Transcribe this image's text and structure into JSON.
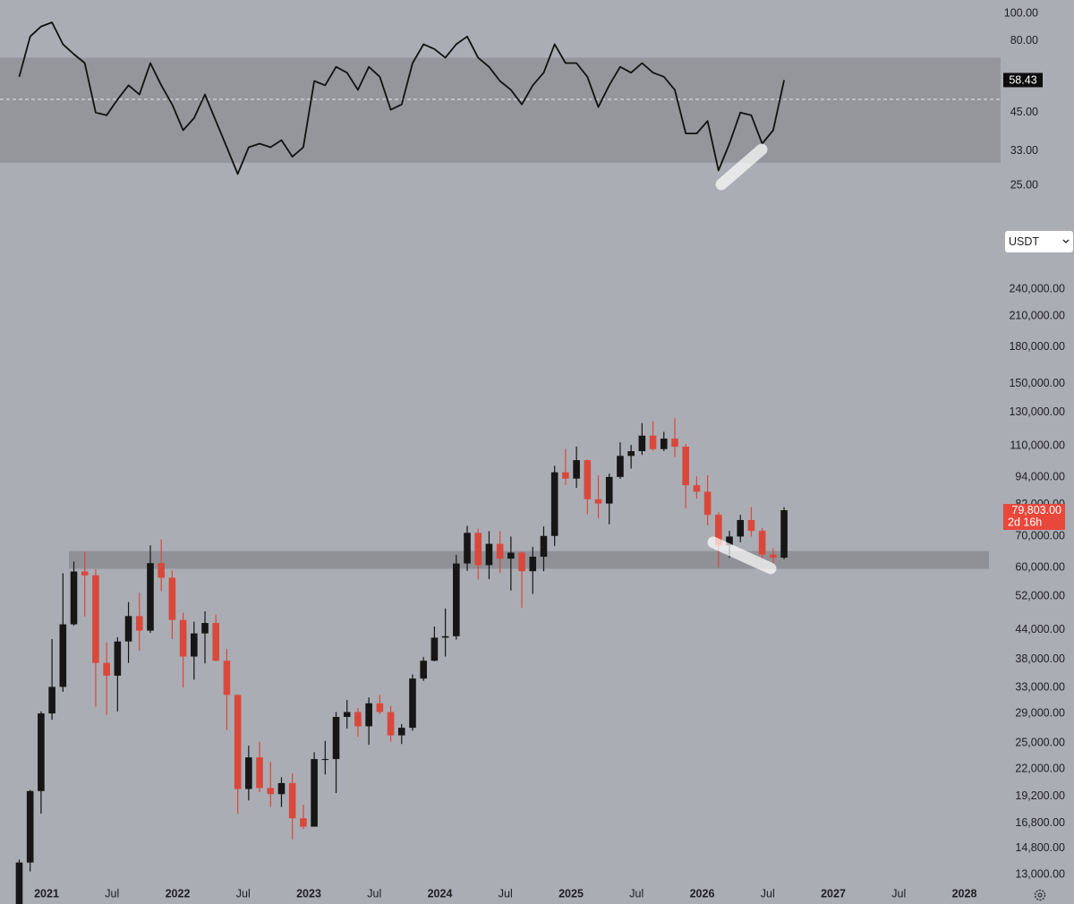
{
  "chart_data": [
    {
      "type": "line",
      "x": [
        "2020-10",
        "2020-11",
        "2020-12",
        "2021-01",
        "2021-02",
        "2021-03",
        "2021-04",
        "2021-05",
        "2021-06",
        "2021-07",
        "2021-08",
        "2021-09",
        "2021-10",
        "2021-11",
        "2021-12",
        "2022-01",
        "2022-02",
        "2022-03",
        "2022-04",
        "2022-05",
        "2022-06",
        "2022-07",
        "2022-08",
        "2022-09",
        "2022-10",
        "2022-11",
        "2022-12",
        "2023-01",
        "2023-02",
        "2023-03",
        "2023-04",
        "2023-05",
        "2023-06",
        "2023-07",
        "2023-08",
        "2023-09",
        "2023-10",
        "2023-11",
        "2023-12",
        "2024-01",
        "2024-02",
        "2024-03",
        "2024-04",
        "2024-05",
        "2024-06",
        "2024-07",
        "2024-08",
        "2024-09",
        "2024-10",
        "2024-11",
        "2024-12",
        "2025-01",
        "2025-02",
        "2025-03",
        "2025-04",
        "2025-05",
        "2025-06",
        "2025-07",
        "2025-08",
        "2025-09",
        "2025-10",
        "2025-11",
        "2025-12",
        "2026-01",
        "2026-02",
        "2026-03",
        "2026-04",
        "2026-05",
        "2026-06",
        "2026-07",
        "2026-08"
      ],
      "series": [
        {
          "color": "#111111",
          "values": [
            60,
            83,
            90,
            93,
            78,
            72,
            67,
            45,
            44,
            50,
            56,
            52,
            67,
            56,
            48,
            39,
            43,
            52,
            42,
            34,
            27.4,
            34,
            35,
            34,
            36,
            31.5,
            34,
            58,
            56,
            65,
            62,
            54,
            65,
            60,
            46,
            48,
            67,
            78,
            75,
            70,
            78,
            83,
            70,
            65,
            58,
            54,
            48,
            56,
            62,
            78,
            67,
            67,
            60,
            47,
            56,
            65,
            62,
            67,
            62,
            60,
            54,
            38,
            38,
            42,
            28.2,
            35,
            45,
            44,
            35,
            39,
            58.43
          ]
        }
      ],
      "log_scale": true,
      "ylim": [
        21.2,
        111.4
      ],
      "yticks": [
        {
          "value": 100,
          "label": "100.00"
        },
        {
          "value": 80,
          "label": "80.00"
        },
        {
          "value": 45,
          "label": "45.00"
        },
        {
          "value": 33,
          "label": "33.00"
        },
        {
          "value": 25,
          "label": "25.00"
        }
      ],
      "band": [
        30,
        70
      ],
      "midline": 50
    },
    {
      "type": "candlestick",
      "x": [
        "2020-10",
        "2020-11",
        "2020-12",
        "2021-01",
        "2021-02",
        "2021-03",
        "2021-04",
        "2021-05",
        "2021-06",
        "2021-07",
        "2021-08",
        "2021-09",
        "2021-10",
        "2021-11",
        "2021-12",
        "2022-01",
        "2022-02",
        "2022-03",
        "2022-04",
        "2022-05",
        "2022-06",
        "2022-07",
        "2022-08",
        "2022-09",
        "2022-10",
        "2022-11",
        "2022-12",
        "2023-01",
        "2023-02",
        "2023-03",
        "2023-04",
        "2023-05",
        "2023-06",
        "2023-07",
        "2023-08",
        "2023-09",
        "2023-10",
        "2023-11",
        "2023-12",
        "2024-01",
        "2024-02",
        "2024-03",
        "2024-04",
        "2024-05",
        "2024-06",
        "2024-07",
        "2024-08",
        "2024-09",
        "2024-10",
        "2024-11",
        "2024-12",
        "2025-01",
        "2025-02",
        "2025-03",
        "2025-04",
        "2025-05",
        "2025-06",
        "2025-07",
        "2025-08",
        "2025-09",
        "2025-10",
        "2025-11",
        "2025-12",
        "2026-01",
        "2026-02",
        "2026-03",
        "2026-04",
        "2026-05",
        "2026-06",
        "2026-07",
        "2026-08"
      ],
      "open": [
        10800,
        13800,
        19700,
        29000,
        33100,
        45200,
        58800,
        57700,
        37300,
        35000,
        41500,
        47100,
        43800,
        61300,
        57000,
        46200,
        38500,
        43200,
        45500,
        37700,
        31800,
        19900,
        23300,
        20000,
        19400,
        20500,
        17200,
        16500,
        23100,
        23100,
        28500,
        29200,
        27200,
        30500,
        29200,
        26000,
        27000,
        34500,
        37700,
        42300,
        42600,
        61200,
        71300,
        60700,
        67500,
        62700,
        64600,
        58900,
        63300,
        70200,
        96400,
        93400,
        102400,
        84300,
        82500,
        94200,
        104600,
        107100,
        115700,
        108200,
        114000,
        109500,
        90400,
        87500,
        78000,
        67000,
        70000,
        76000,
        72000,
        64000,
        63000
      ],
      "high": [
        14000,
        19800,
        29300,
        42000,
        58300,
        61800,
        64900,
        59500,
        41300,
        42400,
        50500,
        52900,
        67000,
        69000,
        59100,
        47900,
        45800,
        48200,
        47400,
        40000,
        31900,
        24700,
        25200,
        22800,
        21100,
        21500,
        18400,
        23900,
        25300,
        29200,
        31000,
        29800,
        31400,
        31800,
        30100,
        27500,
        35200,
        38400,
        44700,
        48900,
        63900,
        73800,
        72800,
        71900,
        71900,
        70000,
        65000,
        66500,
        73600,
        99600,
        108300,
        109600,
        102700,
        95000,
        95700,
        111900,
        110500,
        123200,
        124400,
        117900,
        126200,
        111000,
        94500,
        95000,
        79000,
        72000,
        78000,
        81000,
        73000,
        66000,
        81000
      ],
      "low": [
        10400,
        13200,
        17600,
        28100,
        32300,
        44900,
        47000,
        30000,
        28800,
        29300,
        37300,
        39600,
        43300,
        53300,
        42000,
        33000,
        34300,
        37200,
        37600,
        26700,
        17600,
        18800,
        19600,
        18200,
        18200,
        15500,
        16300,
        16500,
        21400,
        19500,
        26900,
        25800,
        24800,
        28900,
        25200,
        24900,
        26600,
        34100,
        37600,
        38500,
        41900,
        59000,
        56500,
        56600,
        58400,
        53500,
        49100,
        52600,
        58900,
        66800,
        90500,
        89200,
        78200,
        76600,
        74400,
        93300,
        98200,
        105100,
        107300,
        107200,
        104000,
        80500,
        84500,
        74000,
        60000,
        63000,
        68000,
        70000,
        62000,
        61000,
        62500
      ],
      "close": [
        13800,
        19700,
        29000,
        33100,
        45200,
        58800,
        57700,
        37300,
        35000,
        41500,
        47100,
        43800,
        61300,
        57000,
        46200,
        38500,
        43200,
        45500,
        37700,
        31800,
        19900,
        23300,
        20000,
        19400,
        20500,
        17200,
        16500,
        23100,
        23100,
        28500,
        29200,
        27200,
        30500,
        29200,
        26000,
        27000,
        34500,
        37700,
        42300,
        42600,
        61200,
        71300,
        60700,
        67500,
        62700,
        64600,
        58900,
        63300,
        70200,
        96400,
        93400,
        102400,
        84300,
        82500,
        94200,
        104600,
        107100,
        115700,
        108200,
        114000,
        109500,
        90400,
        87500,
        78000,
        67000,
        70000,
        76000,
        72000,
        64000,
        63000,
        79803
      ],
      "up_color": "#161616",
      "down_color": "#d9483b",
      "log_scale": true,
      "ylim": [
        12270,
        266000
      ],
      "yticks": [
        {
          "value": 240000,
          "label": "240,000.00"
        },
        {
          "value": 210000,
          "label": "210,000.00"
        },
        {
          "value": 180000,
          "label": "180,000.00"
        },
        {
          "value": 150000,
          "label": "150,000.00"
        },
        {
          "value": 130000,
          "label": "130,000.00"
        },
        {
          "value": 110000,
          "label": "110,000.00"
        },
        {
          "value": 94000,
          "label": "94,000.00"
        },
        {
          "value": 82000,
          "label": "82,000.00"
        },
        {
          "value": 70000,
          "label": "70,000.00"
        },
        {
          "value": 60000,
          "label": "60,000.00"
        },
        {
          "value": 52000,
          "label": "52,000.00"
        },
        {
          "value": 44000,
          "label": "44,000.00"
        },
        {
          "value": 38000,
          "label": "38,000.00"
        },
        {
          "value": 33000,
          "label": "33,000.00"
        },
        {
          "value": 29000,
          "label": "29,000.00"
        },
        {
          "value": 25000,
          "label": "25,000.00"
        },
        {
          "value": 22000,
          "label": "22,000.00"
        },
        {
          "value": 19200,
          "label": "19,200.00"
        },
        {
          "value": 16800,
          "label": "16,800.00"
        },
        {
          "value": 14800,
          "label": "14,800.00"
        },
        {
          "value": 13000,
          "label": "13,000.00"
        }
      ],
      "xticks": [
        {
          "value": "2021-01",
          "label": "2021"
        },
        {
          "value": "2021-07",
          "label": "Jul"
        },
        {
          "value": "2022-01",
          "label": "2022"
        },
        {
          "value": "2022-07",
          "label": "Jul"
        },
        {
          "value": "2023-01",
          "label": "2023"
        },
        {
          "value": "2023-07",
          "label": "Jul"
        },
        {
          "value": "2024-01",
          "label": "2024"
        },
        {
          "value": "2024-07",
          "label": "Jul"
        },
        {
          "value": "2025-01",
          "label": "2025"
        },
        {
          "value": "2025-07",
          "label": "Jul"
        },
        {
          "value": "2026-01",
          "label": "2026"
        },
        {
          "value": "2026-07",
          "label": "Jul"
        },
        {
          "value": "2027-01",
          "label": "2027"
        },
        {
          "value": "2027-07",
          "label": "Jul"
        },
        {
          "value": "2028-01",
          "label": "2028"
        }
      ],
      "zone": [
        59600,
        65100
      ],
      "last_price_label": "79,803.00",
      "countdown": "2d 16h"
    }
  ],
  "ui": {
    "currency": "USDT"
  }
}
